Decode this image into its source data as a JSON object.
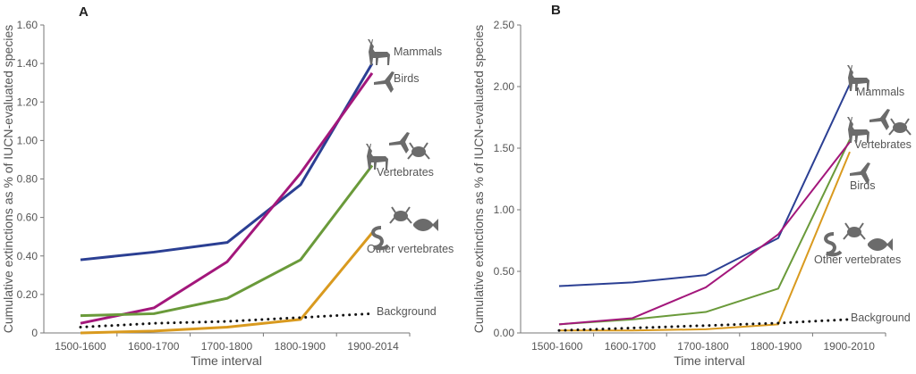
{
  "chart_data": [
    {
      "type": "line",
      "panel_label": "A",
      "xlabel": "Time interval",
      "ylabel": "Cumulative extinctions as % of IUCN-evaluated species",
      "categories": [
        "1500-1600",
        "1600-1700",
        "1700-1800",
        "1800-1900",
        "1900-2014"
      ],
      "yticks": [
        "0",
        "0.20",
        "0.40",
        "0.60",
        "0.80",
        "1.00",
        "1.20",
        "1.40",
        "1.60"
      ],
      "ylim": [
        0,
        1.6
      ],
      "grid": false,
      "series": [
        {
          "name": "Mammals",
          "color": "#2b3f93",
          "style": "solid",
          "icons": [
            "deer-icon"
          ],
          "values": [
            0.38,
            0.42,
            0.47,
            0.77,
            1.4
          ]
        },
        {
          "name": "Birds",
          "color": "#a3177b",
          "style": "solid",
          "icons": [
            "bird-icon"
          ],
          "values": [
            0.05,
            0.13,
            0.37,
            0.83,
            1.35
          ]
        },
        {
          "name": "Vertebrates",
          "color": "#6a9a3a",
          "style": "solid",
          "icons": [
            "deer-icon",
            "bird-icon",
            "frog-icon"
          ],
          "values": [
            0.09,
            0.1,
            0.18,
            0.38,
            0.87
          ]
        },
        {
          "name": "Other vertebrates",
          "color": "#d99a1f",
          "style": "solid",
          "icons": [
            "snake-icon",
            "frog-icon",
            "fish-icon"
          ],
          "values": [
            0.0,
            0.01,
            0.03,
            0.07,
            0.52
          ]
        },
        {
          "name": "Background",
          "color": "#111111",
          "style": "dotted",
          "icons": [],
          "values": [
            0.03,
            0.05,
            0.06,
            0.08,
            0.1
          ]
        }
      ]
    },
    {
      "type": "line",
      "panel_label": "B",
      "xlabel": "Time interval",
      "ylabel": "Cumulative extinctions as % of IUCN-evaluated species",
      "categories": [
        "1500-1600",
        "1600-1700",
        "1700-1800",
        "1800-1900",
        "1900-2010"
      ],
      "yticks": [
        "0.00",
        "0.50",
        "1.00",
        "1.50",
        "2.00",
        "2.50"
      ],
      "ylim": [
        0,
        2.5
      ],
      "grid": false,
      "series": [
        {
          "name": "Mammals",
          "color": "#2b3f93",
          "style": "solid",
          "icons": [
            "deer-icon"
          ],
          "values": [
            0.38,
            0.41,
            0.47,
            0.77,
            2.02
          ]
        },
        {
          "name": "Vertebrates",
          "color": "#6a9a3a",
          "style": "solid",
          "icons": [
            "deer-icon",
            "bird-icon",
            "frog-icon"
          ],
          "values": [
            0.07,
            0.11,
            0.17,
            0.36,
            1.57
          ]
        },
        {
          "name": "Birds",
          "color": "#a3177b",
          "style": "solid",
          "icons": [
            "bird-icon"
          ],
          "values": [
            0.07,
            0.12,
            0.37,
            0.8,
            1.55
          ]
        },
        {
          "name": "Other vertebrates",
          "color": "#d99a1f",
          "style": "solid",
          "icons": [
            "snake-icon",
            "frog-icon",
            "fish-icon"
          ],
          "values": [
            0.02,
            0.02,
            0.03,
            0.07,
            1.47
          ]
        },
        {
          "name": "Background",
          "color": "#111111",
          "style": "dotted",
          "icons": [],
          "values": [
            0.02,
            0.04,
            0.06,
            0.08,
            0.11
          ]
        }
      ]
    }
  ]
}
